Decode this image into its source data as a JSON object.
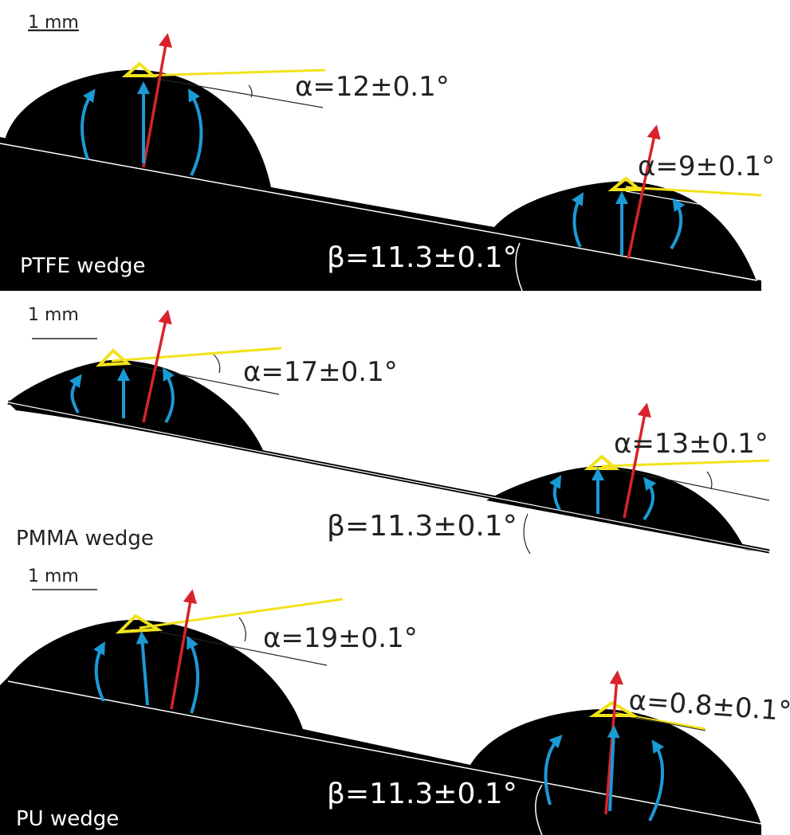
{
  "panels": [
    {
      "scale_bar": "1 mm",
      "label": "PTFE wedge",
      "beta": "β=11.3±0.1°",
      "alphas": [
        "α=12±0.1°",
        "α=9±0.1°"
      ]
    },
    {
      "scale_bar": "1 mm",
      "label": "PMMA wedge",
      "beta": "β=11.3±0.1°",
      "alphas": [
        "α=17±0.1°",
        "α=13±0.1°"
      ]
    },
    {
      "scale_bar": "1 mm",
      "label": "PU wedge",
      "beta": "β=11.3±0.1°",
      "alphas": [
        "α=19±0.1°",
        "α=0.8±0.1°"
      ]
    }
  ]
}
